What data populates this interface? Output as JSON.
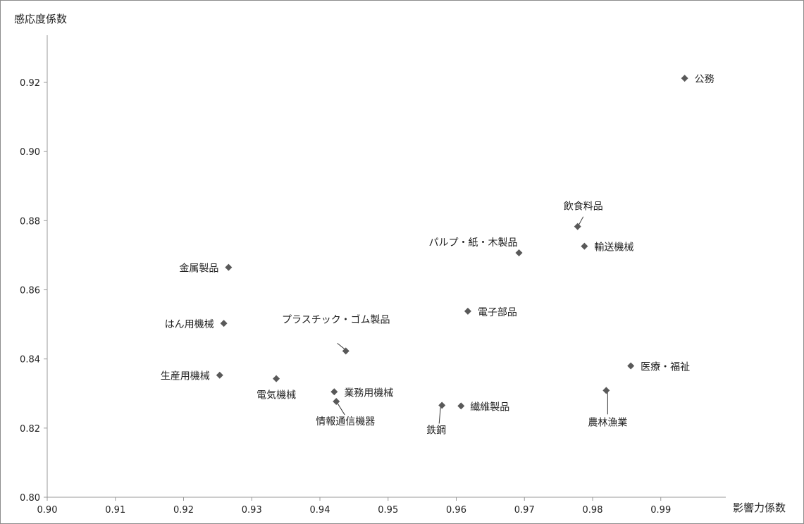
{
  "chart_data": {
    "type": "scatter",
    "title": "",
    "xlabel": "影響力係数",
    "ylabel": "感応度係数",
    "xlim": [
      0.9,
      0.995
    ],
    "ylim": [
      0.8,
      0.93
    ],
    "x_ticks": [
      "0.90",
      "0.91",
      "0.92",
      "0.93",
      "0.94",
      "0.95",
      "0.96",
      "0.97",
      "0.98",
      "0.99"
    ],
    "y_ticks": [
      "0.80",
      "0.82",
      "0.84",
      "0.86",
      "0.88",
      "0.90",
      "0.92"
    ],
    "grid": false,
    "marker": "diamond",
    "marker_color": "#595959",
    "points": [
      {
        "label": "公務",
        "x": 0.9935,
        "y": 0.9212
      },
      {
        "label": "飲食料品",
        "x": 0.9778,
        "y": 0.8783
      },
      {
        "label": "輸送機械",
        "x": 0.9788,
        "y": 0.8726
      },
      {
        "label": "パルプ・紙・木製品",
        "x": 0.9692,
        "y": 0.8707
      },
      {
        "label": "金属製品",
        "x": 0.9266,
        "y": 0.8665
      },
      {
        "label": "電子部品",
        "x": 0.9617,
        "y": 0.8538
      },
      {
        "label": "はん用機械",
        "x": 0.9259,
        "y": 0.8503
      },
      {
        "label": "プラスチック・ゴム製品",
        "x": 0.9438,
        "y": 0.8423
      },
      {
        "label": "医療・福祉",
        "x": 0.9856,
        "y": 0.838
      },
      {
        "label": "生産用機械",
        "x": 0.9253,
        "y": 0.8353
      },
      {
        "label": "電気機械",
        "x": 0.9336,
        "y": 0.8343
      },
      {
        "label": "農林漁業",
        "x": 0.982,
        "y": 0.8309
      },
      {
        "label": "業務用機械",
        "x": 0.9421,
        "y": 0.8305
      },
      {
        "label": "情報通信機器",
        "x": 0.9424,
        "y": 0.8277
      },
      {
        "label": "鉄鋼",
        "x": 0.9579,
        "y": 0.8266
      },
      {
        "label": "繊維製品",
        "x": 0.9607,
        "y": 0.8264
      }
    ]
  }
}
